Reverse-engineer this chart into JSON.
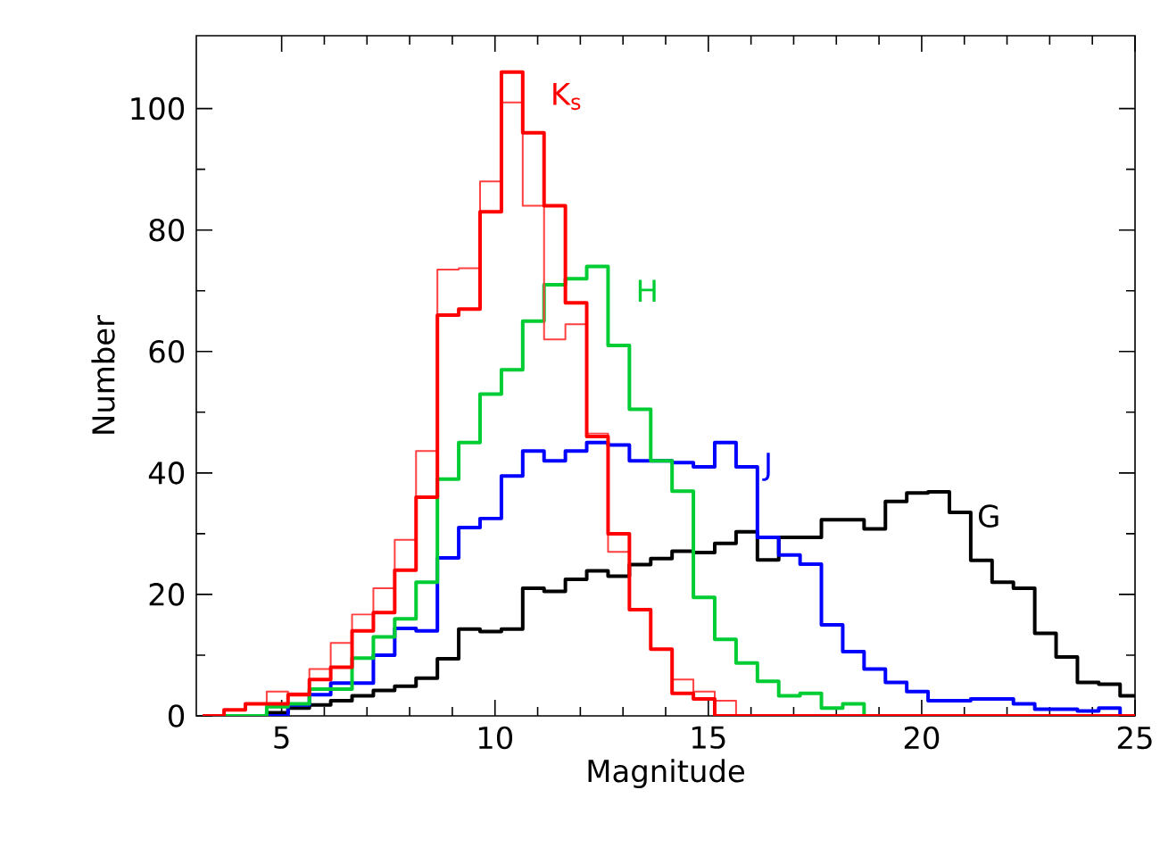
{
  "chart_data": {
    "type": "histogram",
    "xlabel": "Magnitude",
    "ylabel": "Number",
    "bins": [
      3.15,
      3.65,
      4.15,
      4.65,
      5.15,
      5.65,
      6.15,
      6.65,
      7.15,
      7.65,
      8.15,
      8.65,
      9.15,
      9.65,
      10.15,
      10.65,
      11.15,
      11.65,
      12.15,
      12.65,
      13.15,
      13.65,
      14.15,
      14.65,
      15.15,
      15.65,
      16.15,
      16.65,
      17.15,
      17.65,
      18.15,
      18.65,
      19.15,
      19.65,
      20.15,
      20.65,
      21.15,
      21.65,
      22.15,
      22.65,
      23.15,
      23.65,
      24.15,
      24.65,
      25.0
    ],
    "series": [
      {
        "name": "G",
        "color": "#000000",
        "values": [
          0,
          0,
          0,
          0.5,
          1.3,
          1.8,
          2.5,
          3.3,
          4.2,
          4.9,
          6.2,
          9.4,
          14.3,
          13.9,
          14.3,
          21,
          20.5,
          22.5,
          23.9,
          23,
          24.9,
          25.9,
          27.1,
          26.9,
          28.4,
          30.3,
          25.7,
          29.4,
          29.4,
          32.3,
          32.3,
          30.8,
          35.3,
          36.7,
          36.9,
          33.5,
          25.6,
          22,
          21,
          13.6,
          9.7,
          5.5,
          5.2,
          3.3
        ]
      },
      {
        "name": "J",
        "color": "#0000ff",
        "values": [
          0,
          0,
          0,
          0,
          1.8,
          3.5,
          5.4,
          5.4,
          10,
          14.4,
          14,
          26,
          31,
          32.5,
          39.5,
          43.6,
          42,
          43.6,
          45,
          44.6,
          42,
          42,
          41.7,
          41,
          45,
          41,
          29.4,
          26.5,
          25,
          15,
          10.6,
          7.7,
          5.5,
          4,
          2.5,
          2.5,
          2.8,
          2.8,
          2,
          1.1,
          1.1,
          0.8,
          1.3,
          0
        ]
      },
      {
        "name": "H",
        "color": "#00cc33",
        "values": [
          0,
          0,
          0,
          1.5,
          2,
          4.4,
          4.4,
          9.5,
          13,
          16,
          22,
          39,
          45,
          53,
          57,
          65,
          71,
          72,
          74,
          61,
          50.5,
          42,
          37,
          19.5,
          12.6,
          8.7,
          5.7,
          3.3,
          3.7,
          1.3,
          2,
          0,
          0,
          0,
          0,
          0,
          0,
          0,
          0,
          0,
          0,
          0,
          0,
          0
        ]
      },
      {
        "color": "#ff4040",
        "values": [
          0,
          1,
          2,
          4,
          3.7,
          7.7,
          12,
          16.7,
          21,
          29,
          43.6,
          73.5,
          73.7,
          88,
          101,
          84,
          62,
          64.5,
          46.5,
          27,
          17.5,
          11,
          6,
          4,
          2.5,
          0,
          0,
          0,
          0,
          0,
          0,
          0,
          0,
          0,
          0,
          0,
          0,
          0,
          0,
          0,
          0,
          0,
          0,
          0
        ]
      },
      {
        "name": "K$_{s}$",
        "color": "#ff0000",
        "values": [
          0,
          1,
          2,
          2,
          3.5,
          6,
          8,
          14,
          17,
          24,
          36,
          66,
          67,
          83,
          106,
          96,
          84,
          68,
          46,
          30,
          17.5,
          11,
          3.7,
          2.8,
          0,
          0,
          0,
          0,
          0,
          0,
          0,
          0,
          0,
          0,
          0,
          0,
          0,
          0,
          0,
          0,
          0,
          0,
          0,
          0
        ]
      }
    ],
    "xlim": [
      3,
      25
    ],
    "ylim": [
      0,
      112
    ],
    "xticks": [
      5,
      10,
      15,
      20,
      25
    ],
    "yticks": [
      0,
      20,
      40,
      60,
      80,
      100
    ],
    "grid": false
  }
}
